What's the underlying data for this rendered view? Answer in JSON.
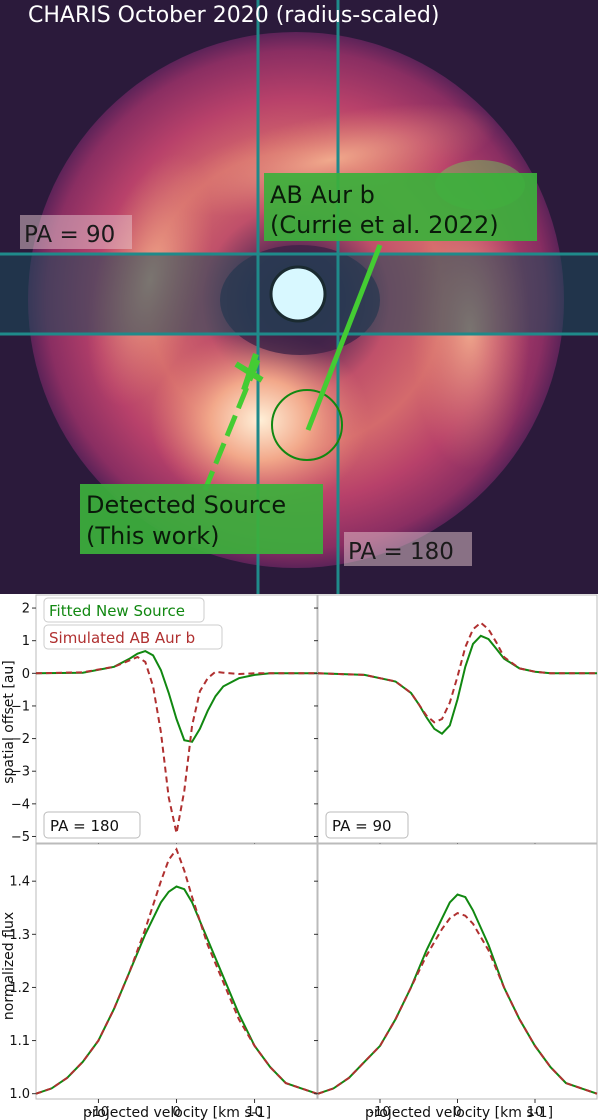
{
  "colors": {
    "background_dark": "#2b1a3b",
    "disk_outer": "#b8416a",
    "disk_bright": "#f0a890",
    "grid_line": "#1f8a8a",
    "star": "#d8f8ff",
    "fitted": "#118811",
    "simulated": "#b03030",
    "label_green": "#3cb03c"
  },
  "image_panel": {
    "title": "CHARIS October 2020 (radius-scaled)",
    "label_pa90": "PA = 90",
    "label_pa180": "PA = 180",
    "label_abaur_line1": "AB Aur b",
    "label_abaur_line2": "(Currie et al. 2022)",
    "label_detected_line1": "Detected Source",
    "label_detected_line2": "(This work)"
  },
  "chart_data": [
    {
      "type": "line",
      "panel": "top-left",
      "ylabel": "spatial offset [au]",
      "annotation": "PA = 180",
      "legend": [
        "Fitted New Source",
        "Simulated AB Aur b"
      ],
      "ylim": [
        -5.2,
        2.4
      ],
      "xlim": [
        -18,
        18
      ],
      "yticks": [
        2,
        1,
        0,
        -1,
        -2,
        -3,
        -4,
        -5
      ],
      "series": [
        {
          "name": "Fitted New Source",
          "style": "solid",
          "x": [
            -18,
            -12,
            -8,
            -6,
            -5,
            -4,
            -3,
            -2,
            -1,
            0,
            1,
            2,
            3,
            4,
            5,
            6,
            8,
            10,
            12,
            18
          ],
          "y": [
            0,
            0.02,
            0.2,
            0.45,
            0.6,
            0.68,
            0.55,
            0.1,
            -0.6,
            -1.4,
            -2.05,
            -2.1,
            -1.7,
            -1.15,
            -0.7,
            -0.4,
            -0.15,
            -0.05,
            0,
            0
          ]
        },
        {
          "name": "Simulated AB Aur b",
          "style": "dashed",
          "x": [
            -18,
            -12,
            -8,
            -6,
            -5,
            -4,
            -3,
            -2,
            -1,
            0,
            1,
            2,
            3,
            4,
            5,
            6,
            8,
            10,
            12,
            18
          ],
          "y": [
            0,
            0.03,
            0.2,
            0.4,
            0.5,
            0.35,
            -0.4,
            -1.8,
            -3.8,
            -4.9,
            -3.6,
            -1.6,
            -0.55,
            -0.15,
            0.05,
            0.02,
            -0.02,
            0,
            0,
            0
          ]
        }
      ]
    },
    {
      "type": "line",
      "panel": "top-right",
      "annotation": "PA = 90",
      "ylim": [
        -5.2,
        2.4
      ],
      "xlim": [
        -18,
        18
      ],
      "series": [
        {
          "name": "Fitted New Source",
          "style": "solid",
          "x": [
            -18,
            -12,
            -8,
            -6,
            -5,
            -4,
            -3,
            -2,
            -1,
            0,
            1,
            2,
            3,
            4,
            5,
            6,
            8,
            10,
            12,
            18
          ],
          "y": [
            0,
            -0.05,
            -0.25,
            -0.6,
            -0.95,
            -1.35,
            -1.7,
            -1.85,
            -1.6,
            -0.8,
            0.2,
            0.9,
            1.15,
            1.05,
            0.75,
            0.45,
            0.15,
            0.05,
            0,
            0
          ]
        },
        {
          "name": "Simulated AB Aur b",
          "style": "dashed",
          "x": [
            -18,
            -12,
            -8,
            -6,
            -5,
            -4,
            -3,
            -2,
            -1,
            0,
            1,
            2,
            3,
            4,
            5,
            6,
            8,
            10,
            12,
            18
          ],
          "y": [
            0,
            -0.05,
            -0.25,
            -0.6,
            -0.95,
            -1.3,
            -1.5,
            -1.4,
            -0.9,
            -0.1,
            0.8,
            1.35,
            1.55,
            1.35,
            0.95,
            0.5,
            0.15,
            0.05,
            0,
            0
          ]
        }
      ]
    },
    {
      "type": "line",
      "panel": "bottom-left",
      "ylabel": "normalized flux",
      "xlabel": "projected velocity [km s-1]",
      "ylim": [
        0.99,
        1.47
      ],
      "xlim": [
        -18,
        18
      ],
      "yticks": [
        1.0,
        1.1,
        1.2,
        1.3,
        1.4
      ],
      "xticks": [
        -10,
        0,
        10
      ],
      "series": [
        {
          "name": "Fitted New Source",
          "style": "solid",
          "x": [
            -18,
            -16,
            -14,
            -12,
            -10,
            -8,
            -6,
            -4,
            -2,
            -1,
            0,
            1,
            2,
            4,
            6,
            8,
            10,
            12,
            14,
            16,
            18
          ],
          "y": [
            1.0,
            1.01,
            1.03,
            1.06,
            1.1,
            1.16,
            1.23,
            1.3,
            1.36,
            1.38,
            1.39,
            1.385,
            1.36,
            1.29,
            1.22,
            1.15,
            1.09,
            1.05,
            1.02,
            1.01,
            1.0
          ]
        },
        {
          "name": "Simulated AB Aur b",
          "style": "dashed",
          "x": [
            -18,
            -16,
            -14,
            -12,
            -10,
            -8,
            -6,
            -4,
            -2,
            -1,
            0,
            1,
            2,
            4,
            6,
            8,
            10,
            12,
            14,
            16,
            18
          ],
          "y": [
            1.0,
            1.01,
            1.03,
            1.06,
            1.1,
            1.16,
            1.23,
            1.31,
            1.4,
            1.44,
            1.46,
            1.42,
            1.37,
            1.28,
            1.21,
            1.14,
            1.09,
            1.05,
            1.02,
            1.01,
            1.0
          ]
        }
      ]
    },
    {
      "type": "line",
      "panel": "bottom-right",
      "xlabel": "projected velocity [km s-1]",
      "ylim": [
        0.99,
        1.47
      ],
      "xlim": [
        -18,
        18
      ],
      "xticks": [
        -10,
        0,
        10
      ],
      "series": [
        {
          "name": "Fitted New Source",
          "style": "solid",
          "x": [
            -18,
            -16,
            -14,
            -12,
            -10,
            -8,
            -6,
            -4,
            -2,
            -1,
            0,
            1,
            2,
            4,
            6,
            8,
            10,
            12,
            14,
            16,
            18
          ],
          "y": [
            1.0,
            1.01,
            1.03,
            1.06,
            1.09,
            1.14,
            1.2,
            1.27,
            1.33,
            1.36,
            1.375,
            1.37,
            1.345,
            1.28,
            1.2,
            1.14,
            1.09,
            1.05,
            1.02,
            1.01,
            1.0
          ]
        },
        {
          "name": "Simulated AB Aur b",
          "style": "dashed",
          "x": [
            -18,
            -16,
            -14,
            -12,
            -10,
            -8,
            -6,
            -4,
            -2,
            -1,
            0,
            1,
            2,
            4,
            6,
            8,
            10,
            12,
            14,
            16,
            18
          ],
          "y": [
            1.0,
            1.01,
            1.03,
            1.06,
            1.09,
            1.14,
            1.2,
            1.26,
            1.31,
            1.33,
            1.34,
            1.335,
            1.32,
            1.27,
            1.2,
            1.14,
            1.09,
            1.05,
            1.02,
            1.01,
            1.0
          ]
        }
      ]
    }
  ]
}
